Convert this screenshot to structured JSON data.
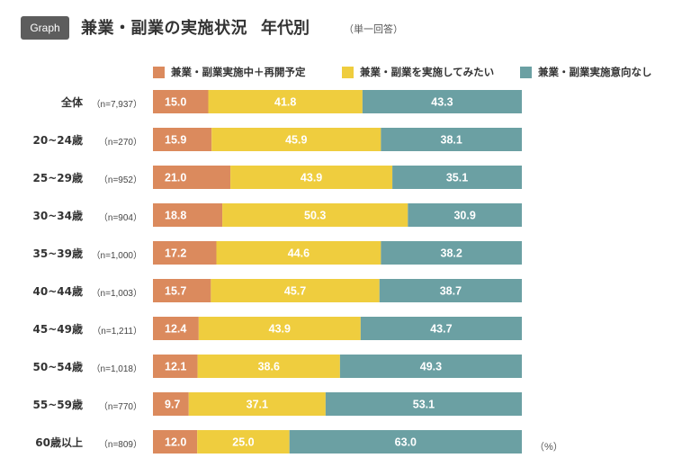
{
  "header": {
    "badge": "Graph",
    "title": "兼業・副業の実施状況",
    "subtitle": "年代別",
    "note": "（単一回答）"
  },
  "chart_data": {
    "type": "bar",
    "orientation": "horizontal-stacked-100",
    "title": "兼業・副業の実施状況　年代別",
    "unit": "（%）",
    "colors": [
      "#db8a5d",
      "#efcd3e",
      "#6ba0a3"
    ],
    "series": [
      {
        "name": "兼業・副業実施中＋再開予定",
        "values": [
          15.0,
          15.9,
          21.0,
          18.8,
          17.2,
          15.7,
          12.4,
          12.1,
          9.7,
          12.0
        ]
      },
      {
        "name": "兼業・副業を実施してみたい",
        "values": [
          41.8,
          45.9,
          43.9,
          50.3,
          44.6,
          45.7,
          43.9,
          38.6,
          37.1,
          25.0
        ]
      },
      {
        "name": "兼業・副業実施意向なし",
        "values": [
          43.3,
          38.1,
          35.1,
          30.9,
          38.2,
          38.7,
          43.7,
          49.3,
          53.1,
          63.0
        ]
      }
    ],
    "categories": [
      "全体",
      "20~24歳",
      "25~29歳",
      "30~34歳",
      "35~39歳",
      "40~44歳",
      "45~49歳",
      "50~54歳",
      "55~59歳",
      "60歳以上"
    ],
    "n_labels": [
      "（n=7,937）",
      "（n=270）",
      "（n=952）",
      "（n=904）",
      "（n=1,000）",
      "（n=1,003）",
      "（n=1,211）",
      "（n=1,018）",
      "（n=770）",
      "（n=809）"
    ],
    "xlim": [
      0,
      100
    ]
  }
}
